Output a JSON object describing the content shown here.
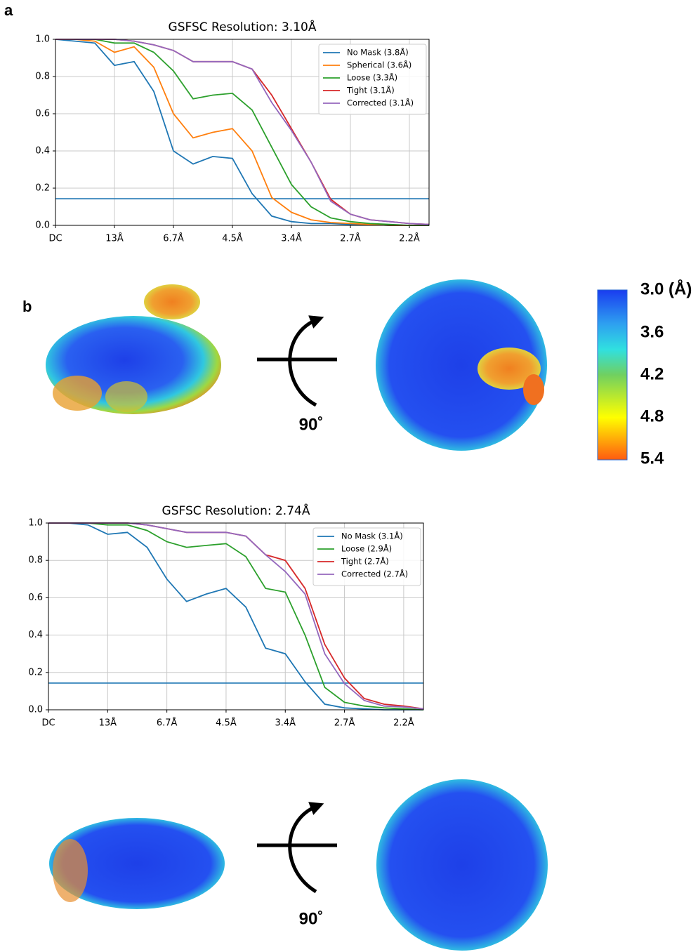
{
  "chart_data": [
    {
      "type": "line",
      "title": "GSFSC Resolution: 3.10Å",
      "x": [
        0,
        0.025,
        0.05,
        0.075,
        0.1,
        0.125,
        0.15,
        0.175,
        0.2,
        0.225,
        0.25,
        0.275,
        0.3,
        0.325,
        0.35,
        0.375,
        0.4,
        0.425,
        0.45,
        0.475
      ],
      "series": [
        {
          "name": "No Mask (3.8Å)",
          "color": "#1f77b4",
          "values": [
            1,
            0.99,
            0.98,
            0.86,
            0.88,
            0.72,
            0.4,
            0.33,
            0.37,
            0.36,
            0.17,
            0.05,
            0.02,
            0.01,
            0.01,
            0.005,
            0.005,
            0,
            0,
            0
          ]
        },
        {
          "name": "Spherical (3.6Å)",
          "color": "#ff7f0e",
          "values": [
            1,
            1,
            0.99,
            0.93,
            0.96,
            0.85,
            0.6,
            0.47,
            0.5,
            0.52,
            0.4,
            0.15,
            0.07,
            0.03,
            0.015,
            0.01,
            0.005,
            0,
            0,
            0
          ]
        },
        {
          "name": "Loose (3.3Å)",
          "color": "#2ca02c",
          "values": [
            1,
            1,
            1,
            0.98,
            0.98,
            0.93,
            0.83,
            0.68,
            0.7,
            0.71,
            0.62,
            0.42,
            0.22,
            0.1,
            0.04,
            0.02,
            0.01,
            0.005,
            0,
            0
          ]
        },
        {
          "name": "Tight (3.1Å)",
          "color": "#d62728",
          "values": [
            1,
            1,
            1,
            1,
            0.99,
            0.97,
            0.94,
            0.88,
            0.88,
            0.88,
            0.84,
            0.7,
            0.52,
            0.34,
            0.14,
            0.06,
            0.03,
            0.02,
            0.01,
            0.005
          ]
        },
        {
          "name": "Corrected (3.1Å)",
          "color": "#9467bd",
          "values": [
            1,
            1,
            1,
            1,
            0.99,
            0.97,
            0.94,
            0.88,
            0.88,
            0.88,
            0.84,
            0.66,
            0.51,
            0.34,
            0.13,
            0.06,
            0.03,
            0.02,
            0.01,
            0.005
          ]
        }
      ],
      "threshold": 0.143,
      "threshold_color": "#1f77b4",
      "xlim": [
        0,
        0.475
      ],
      "ylim": [
        0,
        1
      ],
      "xticks": [
        {
          "value": 0,
          "label": "DC"
        },
        {
          "value": 0.075,
          "label": "13Å"
        },
        {
          "value": 0.15,
          "label": "6.7Å"
        },
        {
          "value": 0.225,
          "label": "4.5Å"
        },
        {
          "value": 0.3,
          "label": "3.4Å"
        },
        {
          "value": 0.375,
          "label": "2.7Å"
        },
        {
          "value": 0.45,
          "label": "2.2Å"
        }
      ],
      "yticks": [
        {
          "value": 0,
          "label": "0.0"
        },
        0.2,
        0.4,
        0.6,
        0.8,
        {
          "value": 1,
          "label": "1.0"
        }
      ],
      "grid": true,
      "legend": "upper right"
    },
    {
      "type": "line",
      "title": "GSFSC Resolution: 2.74Å",
      "x": [
        0,
        0.025,
        0.05,
        0.075,
        0.1,
        0.125,
        0.15,
        0.175,
        0.2,
        0.225,
        0.25,
        0.275,
        0.3,
        0.325,
        0.35,
        0.375,
        0.4,
        0.425,
        0.45,
        0.475
      ],
      "series": [
        {
          "name": "No Mask (3.1Å)",
          "color": "#1f77b4",
          "values": [
            1,
            1,
            0.99,
            0.94,
            0.95,
            0.87,
            0.7,
            0.58,
            0.62,
            0.65,
            0.55,
            0.33,
            0.3,
            0.15,
            0.03,
            0.01,
            0.005,
            0,
            0,
            0
          ]
        },
        {
          "name": "Loose (2.9Å)",
          "color": "#2ca02c",
          "values": [
            1,
            1,
            1,
            0.99,
            0.99,
            0.96,
            0.9,
            0.87,
            0.88,
            0.89,
            0.82,
            0.65,
            0.63,
            0.4,
            0.12,
            0.04,
            0.02,
            0.01,
            0.005,
            0
          ]
        },
        {
          "name": "Tight (2.7Å)",
          "color": "#d62728",
          "values": [
            1,
            1,
            1,
            1,
            1,
            0.99,
            0.97,
            0.95,
            0.95,
            0.95,
            0.93,
            0.83,
            0.8,
            0.65,
            0.35,
            0.17,
            0.06,
            0.03,
            0.02,
            0.005
          ]
        },
        {
          "name": "Corrected (2.7Å)",
          "color": "#9467bd",
          "values": [
            1,
            1,
            1,
            1,
            1,
            0.99,
            0.97,
            0.95,
            0.95,
            0.95,
            0.93,
            0.83,
            0.74,
            0.62,
            0.3,
            0.14,
            0.05,
            0.02,
            0.015,
            0.005
          ]
        }
      ],
      "threshold": 0.143,
      "threshold_color": "#1f77b4",
      "xlim": [
        0,
        0.475
      ],
      "ylim": [
        0,
        1
      ],
      "xticks": [
        {
          "value": 0,
          "label": "DC"
        },
        {
          "value": 0.075,
          "label": "13Å"
        },
        {
          "value": 0.15,
          "label": "6.7Å"
        },
        {
          "value": 0.225,
          "label": "4.5Å"
        },
        {
          "value": 0.3,
          "label": "3.4Å"
        },
        {
          "value": 0.375,
          "label": "2.7Å"
        },
        {
          "value": 0.45,
          "label": "2.2Å"
        }
      ],
      "yticks": [
        {
          "value": 0,
          "label": "0.0"
        },
        0.2,
        0.4,
        0.6,
        0.8,
        {
          "value": 1,
          "label": "1.0"
        }
      ],
      "grid": true,
      "legend": "upper right"
    }
  ],
  "panel_labels": [
    "a",
    "b"
  ],
  "rotation_label": "90˚",
  "colorbar": {
    "labels": [
      "3.0 (Å)",
      "3.6",
      "4.2",
      "4.8",
      "5.4"
    ]
  }
}
